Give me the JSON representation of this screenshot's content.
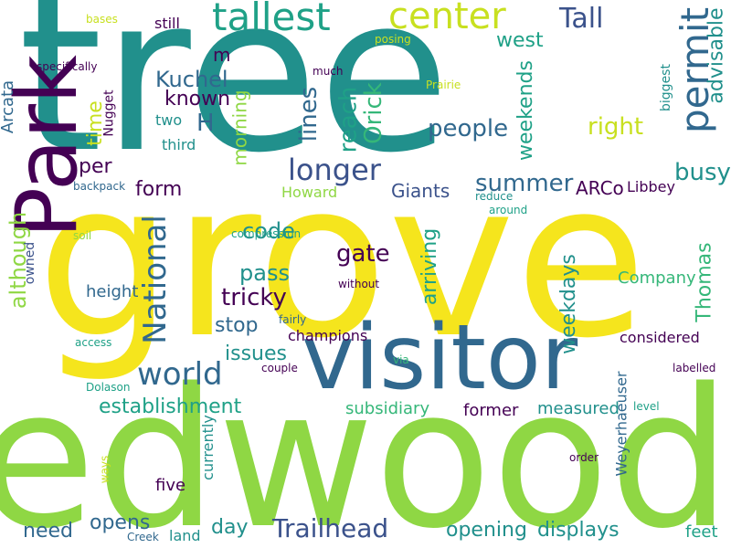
{
  "words": [
    {
      "text": "tree",
      "color": "#21908c"
    },
    {
      "text": "grove",
      "color": "#f5e51d"
    },
    {
      "text": "Redwood",
      "color": "#8fd744"
    },
    {
      "text": "visitor",
      "color": "#31688e"
    },
    {
      "text": "Park",
      "color": "#440154"
    },
    {
      "text": "tallest",
      "color": "#1fa187"
    },
    {
      "text": "center",
      "color": "#c8e020"
    },
    {
      "text": "Tall",
      "color": "#3b528b"
    },
    {
      "text": "permit",
      "color": "#31688e"
    },
    {
      "text": "advisable",
      "color": "#21908c"
    },
    {
      "text": "west",
      "color": "#1fa187"
    },
    {
      "text": "m",
      "color": "#440154"
    },
    {
      "text": "Kuchel",
      "color": "#31688e"
    },
    {
      "text": "known",
      "color": "#440154"
    },
    {
      "text": "H",
      "color": "#31688e"
    },
    {
      "text": "time",
      "color": "#c8e020"
    },
    {
      "text": "Nugget",
      "color": "#440154"
    },
    {
      "text": "two",
      "color": "#21908c"
    },
    {
      "text": "third",
      "color": "#21908c"
    },
    {
      "text": "Arcata",
      "color": "#31688e"
    },
    {
      "text": "lines",
      "color": "#31688e"
    },
    {
      "text": "reach",
      "color": "#1fa187"
    },
    {
      "text": "Orick",
      "color": "#35b779"
    },
    {
      "text": "weekends",
      "color": "#1fa187"
    },
    {
      "text": "people",
      "color": "#31688e"
    },
    {
      "text": "right",
      "color": "#c8e020"
    },
    {
      "text": "biggest",
      "color": "#21908c"
    },
    {
      "text": "busy",
      "color": "#21908c"
    },
    {
      "text": "longer",
      "color": "#3b528b"
    },
    {
      "text": "morning",
      "color": "#8fd744"
    },
    {
      "text": "per",
      "color": "#440154"
    },
    {
      "text": "form",
      "color": "#440154"
    },
    {
      "text": "summer",
      "color": "#31688e"
    },
    {
      "text": "Giants",
      "color": "#3b528b"
    },
    {
      "text": "ARCo",
      "color": "#440154"
    },
    {
      "text": "Libbey",
      "color": "#440154"
    },
    {
      "text": "Howard",
      "color": "#8fd744"
    },
    {
      "text": "backpack",
      "color": "#31688e"
    },
    {
      "text": "reduce",
      "color": "#21908c"
    },
    {
      "text": "around",
      "color": "#1fa187"
    },
    {
      "text": "National",
      "color": "#31688e"
    },
    {
      "text": "code",
      "color": "#21908c"
    },
    {
      "text": "gate",
      "color": "#440154"
    },
    {
      "text": "pass",
      "color": "#21908c"
    },
    {
      "text": "tricky",
      "color": "#440154"
    },
    {
      "text": "although",
      "color": "#8fd744"
    },
    {
      "text": "owned",
      "color": "#3b528b"
    },
    {
      "text": "soil",
      "color": "#8fd744"
    },
    {
      "text": "compression",
      "color": "#1fa187"
    },
    {
      "text": "without",
      "color": "#440154"
    },
    {
      "text": "height",
      "color": "#31688e"
    },
    {
      "text": "arriving",
      "color": "#1fa187"
    },
    {
      "text": "weekdays",
      "color": "#21908c"
    },
    {
      "text": "Company",
      "color": "#35b779"
    },
    {
      "text": "Thomas",
      "color": "#35b779"
    },
    {
      "text": "stop",
      "color": "#31688e"
    },
    {
      "text": "champions",
      "color": "#440154"
    },
    {
      "text": "fairly",
      "color": "#31688e"
    },
    {
      "text": "considered",
      "color": "#440154"
    },
    {
      "text": "access",
      "color": "#1fa187"
    },
    {
      "text": "issues",
      "color": "#21908c"
    },
    {
      "text": "couple",
      "color": "#440154"
    },
    {
      "text": "via",
      "color": "#35b779"
    },
    {
      "text": "labelled",
      "color": "#440154"
    },
    {
      "text": "world",
      "color": "#31688e"
    },
    {
      "text": "Dolason",
      "color": "#1fa187"
    },
    {
      "text": "establishment",
      "color": "#1fa187"
    },
    {
      "text": "subsidiary",
      "color": "#35b779"
    },
    {
      "text": "measured",
      "color": "#21908c"
    },
    {
      "text": "level",
      "color": "#1fa187"
    },
    {
      "text": "Weyerhaeuser",
      "color": "#31688e"
    },
    {
      "text": "former",
      "color": "#440154"
    },
    {
      "text": "currently",
      "color": "#21908c"
    },
    {
      "text": "ways",
      "color": "#c8e020"
    },
    {
      "text": "order",
      "color": "#440154"
    },
    {
      "text": "five",
      "color": "#440154"
    },
    {
      "text": "need",
      "color": "#31688e"
    },
    {
      "text": "opens",
      "color": "#31688e"
    },
    {
      "text": "day",
      "color": "#21908c"
    },
    {
      "text": "Trailhead",
      "color": "#3b528b"
    },
    {
      "text": "opening",
      "color": "#21908c"
    },
    {
      "text": "displays",
      "color": "#21908c"
    },
    {
      "text": "feet",
      "color": "#1fa187"
    },
    {
      "text": "Creek",
      "color": "#31688e"
    },
    {
      "text": "land",
      "color": "#21908c"
    },
    {
      "text": "bases",
      "color": "#c8e020"
    },
    {
      "text": "still",
      "color": "#440154"
    },
    {
      "text": "posing",
      "color": "#c8e020"
    },
    {
      "text": "specifically",
      "color": "#440154"
    },
    {
      "text": "much",
      "color": "#440154"
    },
    {
      "text": "Prairie",
      "color": "#c8e020"
    }
  ]
}
